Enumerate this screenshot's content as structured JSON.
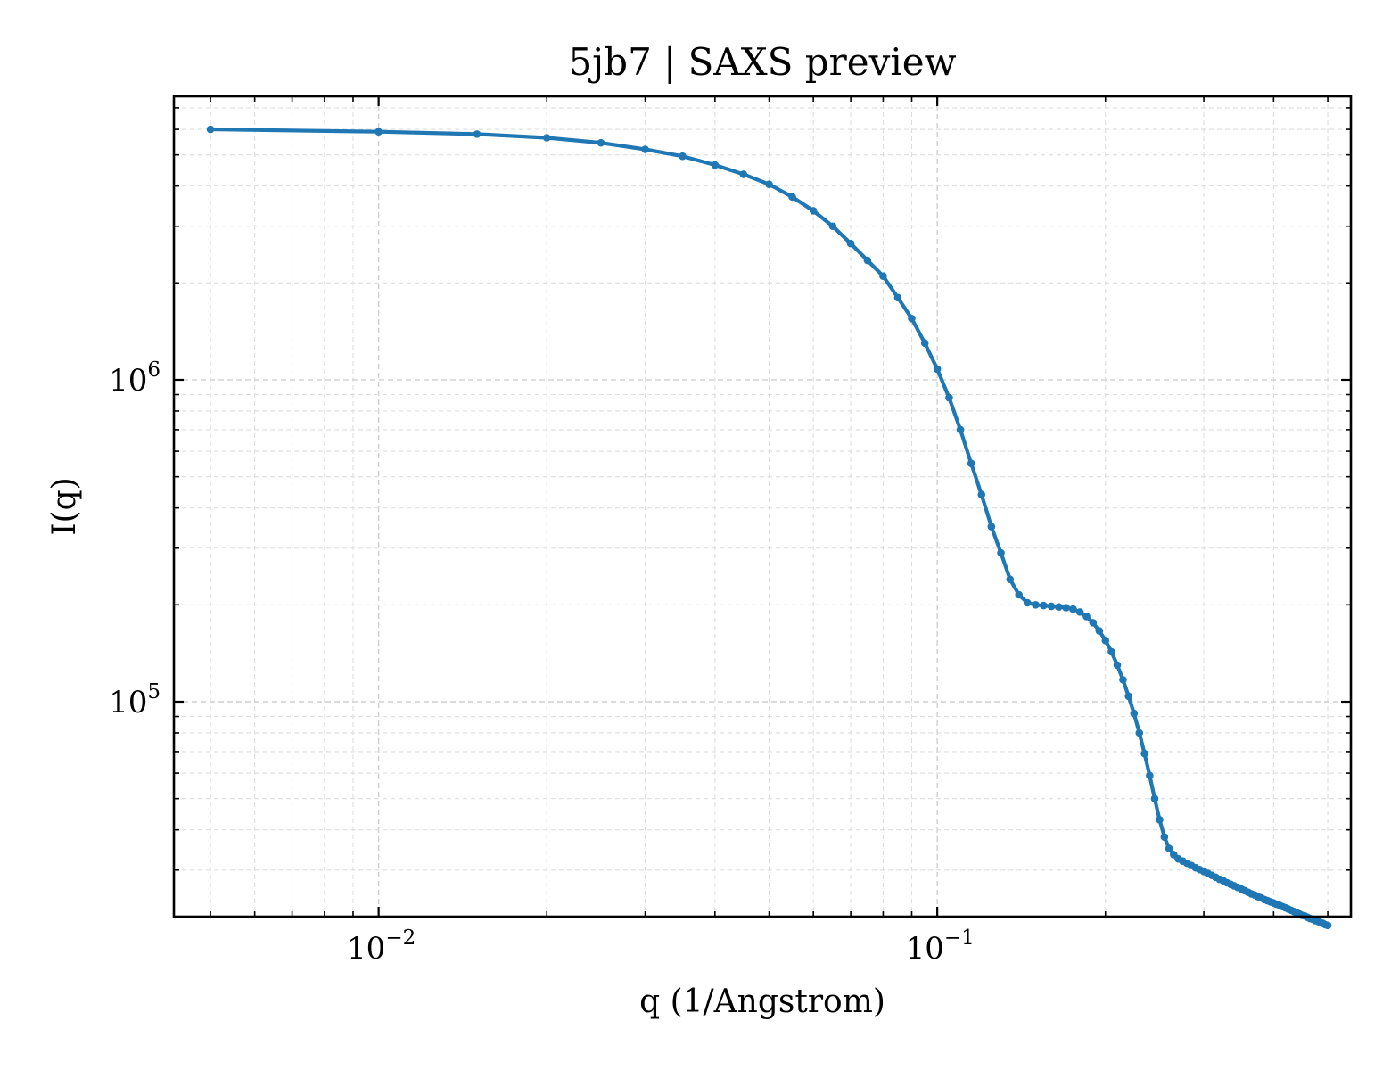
{
  "chart_data": {
    "type": "line",
    "title": "5jb7 | SAXS preview",
    "xlabel": "q (1/Angstrom)",
    "ylabel": "I(q)",
    "xscale": "log",
    "yscale": "log",
    "xlim": [
      0.0043,
      0.55
    ],
    "ylim": [
      21500,
      7600000
    ],
    "x_ticks": [
      {
        "value": 0.01,
        "base": "10",
        "exp": "−2"
      },
      {
        "value": 0.1,
        "base": "10",
        "exp": "−1"
      }
    ],
    "y_ticks": [
      {
        "value": 100000,
        "base": "10",
        "exp": "5"
      },
      {
        "value": 1000000,
        "base": "10",
        "exp": "6"
      }
    ],
    "grid": true,
    "line_color": "#1f77b4",
    "series": [
      {
        "marker": "dot",
        "x": [
          0.005,
          0.01,
          0.015,
          0.02,
          0.025,
          0.03,
          0.035,
          0.04,
          0.045,
          0.05,
          0.055,
          0.06,
          0.065,
          0.07,
          0.075,
          0.08,
          0.085,
          0.09,
          0.095,
          0.1,
          0.105,
          0.11,
          0.115,
          0.12,
          0.125,
          0.13,
          0.135,
          0.14,
          0.145,
          0.15,
          0.155,
          0.16,
          0.165,
          0.17,
          0.175,
          0.18,
          0.185,
          0.19,
          0.195,
          0.2,
          0.205,
          0.21,
          0.215,
          0.22,
          0.225,
          0.23,
          0.235,
          0.24,
          0.245,
          0.25,
          0.255,
          0.26,
          0.265,
          0.27,
          0.275,
          0.28,
          0.285,
          0.29,
          0.295,
          0.3,
          0.305,
          0.31,
          0.315,
          0.32,
          0.325,
          0.33,
          0.335,
          0.34,
          0.345,
          0.35,
          0.355,
          0.36,
          0.365,
          0.37,
          0.375,
          0.38,
          0.385,
          0.39,
          0.395,
          0.4,
          0.405,
          0.41,
          0.415,
          0.42,
          0.425,
          0.43,
          0.435,
          0.44,
          0.445,
          0.45,
          0.455,
          0.46,
          0.465,
          0.47,
          0.475,
          0.48,
          0.485,
          0.49,
          0.495,
          0.5
        ],
        "y": [
          6000000,
          5900000,
          5800000,
          5650000,
          5450000,
          5200000,
          4950000,
          4650000,
          4350000,
          4050000,
          3700000,
          3350000,
          3000000,
          2650000,
          2350000,
          2100000,
          1800000,
          1550000,
          1300000,
          1080000,
          880000,
          700000,
          550000,
          440000,
          350000,
          290000,
          240000,
          215000,
          203000,
          200000,
          199000,
          198000,
          197000,
          196000,
          194000,
          190000,
          184000,
          176000,
          166000,
          155000,
          143000,
          130000,
          117000,
          104000,
          92000,
          80000,
          69000,
          59000,
          50000,
          43000,
          38000,
          35000,
          33500,
          32500,
          32000,
          31500,
          31000,
          30500,
          30100,
          29700,
          29300,
          28900,
          28500,
          28100,
          27800,
          27400,
          27100,
          26800,
          26500,
          26200,
          25900,
          25600,
          25300,
          25100,
          24800,
          24600,
          24300,
          24100,
          23900,
          23700,
          23500,
          23300,
          23100,
          22900,
          22700,
          22500,
          22300,
          22100,
          21900,
          21700,
          21600,
          21400,
          21200,
          21100,
          20900,
          20800,
          20600,
          20500,
          20300,
          20200
        ]
      }
    ]
  }
}
